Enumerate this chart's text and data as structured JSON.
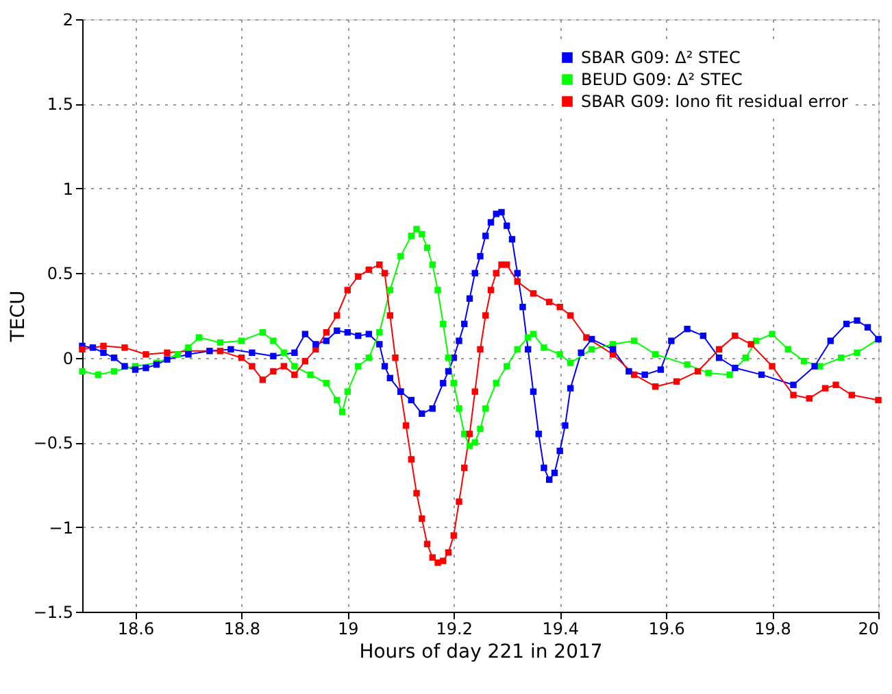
{
  "chart_data": {
    "type": "line",
    "xlabel": "Hours of day 221 in 2017",
    "ylabel": "TECU",
    "xlim": [
      18.5,
      20
    ],
    "xticks": [
      18.6,
      18.8,
      19,
      19.2,
      19.4,
      19.6,
      19.8,
      20
    ],
    "ylim": [
      -1.5,
      2
    ],
    "yticks": [
      -1.5,
      -1,
      -0.5,
      0,
      0.5,
      1,
      1.5,
      2
    ],
    "grid": true,
    "legend": "top right",
    "marker": "square",
    "line_style": "solid",
    "series": [
      {
        "name": "SBAR G09: Δ² STEC",
        "color": "#0000ff",
        "x": [
          18.5,
          18.52,
          18.54,
          18.56,
          18.58,
          18.6,
          18.62,
          18.64,
          18.66,
          18.7,
          18.74,
          18.78,
          18.82,
          18.86,
          18.9,
          18.92,
          18.94,
          18.96,
          18.98,
          19.0,
          19.02,
          19.04,
          19.06,
          19.07,
          19.08,
          19.1,
          19.12,
          19.14,
          19.16,
          19.18,
          19.19,
          19.2,
          19.21,
          19.22,
          19.23,
          19.24,
          19.25,
          19.26,
          19.27,
          19.28,
          19.29,
          19.3,
          19.31,
          19.32,
          19.33,
          19.34,
          19.35,
          19.36,
          19.37,
          19.38,
          19.39,
          19.4,
          19.41,
          19.42,
          19.44,
          19.46,
          19.5,
          19.53,
          19.56,
          19.59,
          19.61,
          19.64,
          19.67,
          19.7,
          19.73,
          19.78,
          19.84,
          19.88,
          19.91,
          19.94,
          19.96,
          19.98,
          20.0
        ],
        "values": [
          0.07,
          0.06,
          0.03,
          0.0,
          -0.05,
          -0.07,
          -0.06,
          -0.04,
          -0.01,
          0.02,
          0.04,
          0.05,
          0.03,
          0.01,
          0.03,
          0.14,
          0.08,
          0.1,
          0.16,
          0.15,
          0.13,
          0.14,
          0.08,
          -0.05,
          -0.12,
          -0.2,
          -0.25,
          -0.33,
          -0.3,
          -0.15,
          -0.08,
          0.0,
          0.1,
          0.2,
          0.35,
          0.5,
          0.6,
          0.72,
          0.8,
          0.85,
          0.86,
          0.78,
          0.7,
          0.5,
          0.3,
          0.05,
          -0.2,
          -0.45,
          -0.65,
          -0.72,
          -0.68,
          -0.55,
          -0.4,
          -0.18,
          0.03,
          0.11,
          0.05,
          -0.08,
          -0.1,
          -0.07,
          0.1,
          0.17,
          0.13,
          0.0,
          -0.06,
          -0.1,
          -0.16,
          -0.05,
          0.1,
          0.2,
          0.22,
          0.18,
          0.11
        ]
      },
      {
        "name": "BEUD G09: Δ² STEC",
        "color": "#00ff00",
        "x": [
          18.5,
          18.53,
          18.56,
          18.6,
          18.64,
          18.68,
          18.7,
          18.72,
          18.76,
          18.8,
          18.84,
          18.86,
          18.88,
          18.9,
          18.93,
          18.96,
          18.98,
          18.99,
          19.0,
          19.02,
          19.04,
          19.06,
          19.08,
          19.1,
          19.12,
          19.13,
          19.14,
          19.15,
          19.16,
          19.17,
          19.18,
          19.19,
          19.2,
          19.21,
          19.22,
          19.23,
          19.24,
          19.25,
          19.26,
          19.28,
          19.3,
          19.32,
          19.34,
          19.35,
          19.37,
          19.4,
          19.42,
          19.46,
          19.5,
          19.54,
          19.58,
          19.64,
          19.68,
          19.72,
          19.75,
          19.77,
          19.8,
          19.83,
          19.86,
          19.89,
          19.93,
          19.96,
          20.0
        ],
        "values": [
          -0.08,
          -0.1,
          -0.08,
          -0.05,
          -0.03,
          0.02,
          0.06,
          0.12,
          0.09,
          0.1,
          0.15,
          0.1,
          0.03,
          -0.05,
          -0.1,
          -0.15,
          -0.25,
          -0.32,
          -0.2,
          -0.05,
          0.0,
          0.15,
          0.4,
          0.6,
          0.72,
          0.76,
          0.73,
          0.65,
          0.55,
          0.4,
          0.2,
          0.0,
          -0.15,
          -0.3,
          -0.45,
          -0.52,
          -0.5,
          -0.42,
          -0.3,
          -0.15,
          -0.05,
          0.05,
          0.12,
          0.14,
          0.06,
          0.02,
          -0.03,
          0.05,
          0.08,
          0.1,
          0.02,
          -0.04,
          -0.09,
          -0.1,
          0.0,
          0.1,
          0.14,
          0.05,
          -0.02,
          -0.05,
          0.0,
          0.03,
          0.11
        ]
      },
      {
        "name": "SBAR G09: Iono fit residual error",
        "color": "#ff0000",
        "x": [
          18.5,
          18.54,
          18.58,
          18.62,
          18.66,
          18.7,
          18.76,
          18.8,
          18.82,
          18.84,
          18.86,
          18.88,
          18.9,
          18.92,
          18.94,
          18.96,
          18.98,
          19.0,
          19.02,
          19.04,
          19.06,
          19.07,
          19.08,
          19.09,
          19.1,
          19.11,
          19.12,
          19.13,
          19.14,
          19.15,
          19.16,
          19.17,
          19.18,
          19.19,
          19.2,
          19.21,
          19.22,
          19.23,
          19.24,
          19.25,
          19.26,
          19.27,
          19.28,
          19.29,
          19.3,
          19.32,
          19.35,
          19.38,
          19.4,
          19.42,
          19.45,
          19.5,
          19.54,
          19.58,
          19.62,
          19.66,
          19.7,
          19.73,
          19.76,
          19.8,
          19.84,
          19.87,
          19.9,
          19.92,
          19.95,
          20.0
        ],
        "values": [
          0.05,
          0.07,
          0.06,
          0.02,
          0.03,
          0.04,
          0.04,
          0.0,
          -0.05,
          -0.13,
          -0.08,
          -0.05,
          -0.1,
          -0.02,
          0.05,
          0.15,
          0.25,
          0.4,
          0.48,
          0.52,
          0.55,
          0.5,
          0.25,
          0.0,
          -0.2,
          -0.4,
          -0.6,
          -0.8,
          -0.95,
          -1.1,
          -1.18,
          -1.21,
          -1.2,
          -1.15,
          -1.05,
          -0.85,
          -0.65,
          -0.45,
          -0.2,
          0.05,
          0.25,
          0.4,
          0.5,
          0.55,
          0.55,
          0.45,
          0.38,
          0.33,
          0.3,
          0.25,
          0.12,
          0.02,
          -0.1,
          -0.17,
          -0.14,
          -0.08,
          0.05,
          0.13,
          0.08,
          -0.05,
          -0.22,
          -0.24,
          -0.18,
          -0.16,
          -0.22,
          -0.25
        ]
      }
    ]
  }
}
